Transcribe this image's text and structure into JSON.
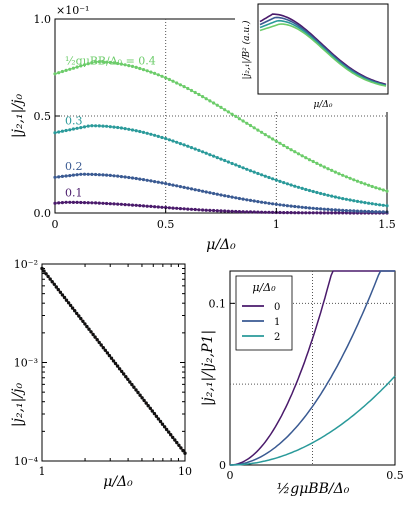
{
  "chart_data": [
    {
      "type": "line",
      "panel": "top-main",
      "xlabel": "μ/Δ₀",
      "ylabel": "|j₂,₁|/j₀",
      "xlim": [
        0,
        1.5
      ],
      "ylim": [
        0,
        1.0
      ],
      "y_scale_label": "×10⁻¹",
      "xticks": [
        "0",
        "0.5",
        "1",
        "1.5"
      ],
      "yticks": [
        "0.0",
        "0.5",
        "1.0"
      ],
      "grid": "dotted lines at x=0.5, x=1",
      "annotation_prefix": "½gμBB/Δ₀ = ",
      "series": [
        {
          "name": "0.1",
          "color": "#4a1a6b",
          "amp": 0.055,
          "peak": 0.05,
          "x0": 0.0,
          "decay": 0.55
        },
        {
          "name": "0.2",
          "color": "#3a5a92",
          "amp": 0.2,
          "peak": 0.12,
          "x0": 0.0,
          "decay": 0.72
        },
        {
          "name": "0.3",
          "color": "#2a9a9a",
          "amp": 0.45,
          "peak": 0.16,
          "x0": 0.0,
          "decay": 0.85
        },
        {
          "name": "0.4",
          "color": "#6ccc6a",
          "amp": 0.78,
          "peak": 0.18,
          "x0": 0.0,
          "decay": 0.95
        }
      ]
    },
    {
      "type": "line",
      "panel": "inset",
      "xlabel": "μ/Δ₀",
      "ylabel": "|j₂,₁|/B² (a.u.)",
      "series_colors": [
        "#4a1a6b",
        "#3a5a92",
        "#2a9a9a",
        "#6ccc6a"
      ]
    },
    {
      "type": "scatter",
      "panel": "bottom-left",
      "xlabel": "μ/Δ₀",
      "ylabel": "|j₂,₁|/j₀",
      "xscale": "log",
      "yscale": "log",
      "xlim": [
        1,
        10
      ],
      "ylim": [
        0.0001,
        0.01
      ],
      "xticks": [
        "1",
        "10"
      ],
      "yticks": [
        "10⁻²",
        "10⁻³",
        "10⁻⁴"
      ],
      "fit_color": "#e03030",
      "points_from": [
        1.0,
        0.009
      ],
      "points_to": [
        10.0,
        0.00012
      ]
    },
    {
      "type": "line",
      "panel": "bottom-right",
      "xlabel": "½gμBB/Δ₀",
      "ylabel": "|j₂,₁|/|j₂,P1|",
      "xlim": [
        0,
        0.5
      ],
      "ylim": [
        0,
        0.12
      ],
      "xticks": [
        "0",
        "0.5"
      ],
      "yticks": [
        "0",
        "0.1"
      ],
      "legend_title": "μ/Δ₀",
      "legend_position": "top-left",
      "series": [
        {
          "name": "0",
          "color": "#4a1a6b",
          "coef": 1.25
        },
        {
          "name": "1",
          "color": "#3a5a92",
          "coef": 0.58
        },
        {
          "name": "2",
          "color": "#2a9a9a",
          "coef": 0.22
        }
      ]
    }
  ]
}
